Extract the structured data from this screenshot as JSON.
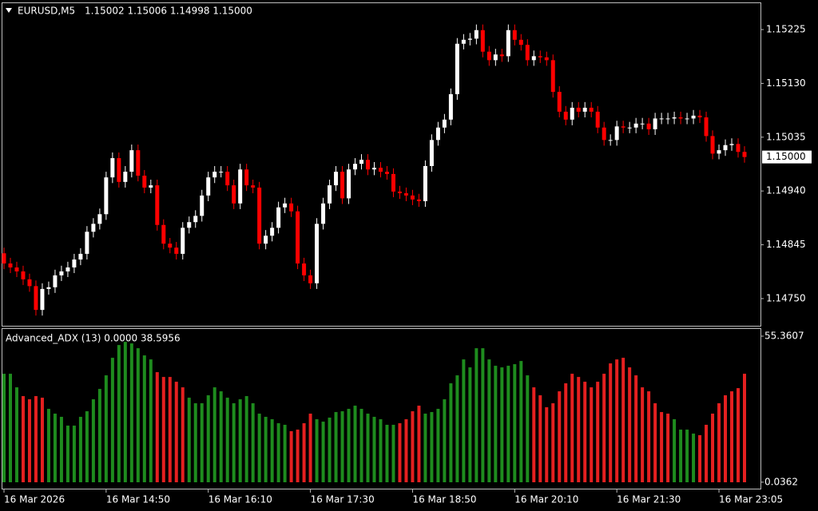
{
  "chart_data": [
    {
      "type": "candlestick",
      "title": "EURUSD,M5",
      "subtitle": "1.15002 1.15006 1.14998 1.15000",
      "last_price_label": "1.15000",
      "up_color": "#ffffff",
      "down_color": "#ff0000",
      "ylim": [
        1.14702,
        1.15273
      ],
      "yticks": [
        1.15225,
        {
          "value": 1.1513,
          "label": "1.15130"
        },
        1.15035,
        {
          "value": 1.1494,
          "label": "1.14940"
        },
        1.14845,
        {
          "value": 1.1475,
          "label": "1.14750"
        }
      ],
      "categories": [
        "16 Mar 2026",
        null,
        null,
        null,
        null,
        null,
        null,
        null,
        null,
        null,
        null,
        null,
        null,
        null,
        null,
        null,
        "16 Mar 14:50",
        null,
        null,
        null,
        null,
        null,
        null,
        null,
        null,
        null,
        null,
        null,
        null,
        null,
        null,
        null,
        "16 Mar 16:10",
        null,
        null,
        null,
        null,
        null,
        null,
        null,
        null,
        null,
        null,
        null,
        null,
        null,
        null,
        null,
        "16 Mar 17:30",
        null,
        null,
        null,
        null,
        null,
        null,
        null,
        null,
        null,
        null,
        null,
        null,
        null,
        null,
        null,
        "16 Mar 18:50",
        null,
        null,
        null,
        null,
        null,
        null,
        null,
        null,
        null,
        null,
        null,
        null,
        null,
        null,
        null,
        "16 Mar 20:10",
        null,
        null,
        null,
        null,
        null,
        null,
        null,
        null,
        null,
        null,
        null,
        null,
        null,
        null,
        null,
        "16 Mar 21:30",
        null,
        null,
        null,
        null,
        null,
        null,
        null,
        null,
        null,
        null,
        null,
        null,
        null,
        null,
        null,
        "16 Mar 23:05",
        null,
        null,
        null,
        null
      ],
      "open": [
        1.1483,
        1.14812,
        1.14805,
        1.14798,
        1.14784,
        1.14772,
        1.1473,
        1.14767,
        1.1477,
        1.14791,
        1.14798,
        1.14805,
        1.14819,
        1.14829,
        1.14868,
        1.14882,
        1.14899,
        1.14964,
        1.14998,
        1.14956,
        1.14974,
        1.15012,
        1.14967,
        1.14946,
        1.1495,
        1.1488,
        1.14847,
        1.1484,
        1.14829,
        1.14875,
        1.14885,
        1.14896,
        1.14932,
        1.14964,
        1.14974,
        1.14974,
        1.1495,
        1.14918,
        1.14978,
        1.1495,
        1.14946,
        1.14847,
        1.14861,
        1.14875,
        1.14911,
        1.14918,
        1.14904,
        1.14812,
        1.14791,
        1.14777,
        1.14882,
        1.14918,
        1.1495,
        1.14974,
        1.14927,
        1.14978,
        1.14988,
        1.14995,
        1.14978,
        1.14981,
        1.14974,
        1.1497,
        1.14939,
        1.14936,
        1.14932,
        1.14925,
        1.14922,
        1.14984,
        1.1503,
        1.15052,
        1.15066,
        1.15111,
        1.152,
        1.15207,
        1.15209,
        1.15224,
        1.15186,
        1.15171,
        1.15181,
        1.15178,
        1.15224,
        1.15207,
        1.15198,
        1.15171,
        1.15178,
        1.15176,
        1.15171,
        1.15115,
        1.1508,
        1.15066,
        1.15087,
        1.1508,
        1.15087,
        1.1508,
        1.15052,
        1.1503,
        1.1503,
        1.15054,
        1.15052,
        1.15052,
        1.15059,
        1.15059,
        1.15049,
        1.15068,
        1.15068,
        1.15068,
        1.1507,
        1.15068,
        1.15068,
        1.15073,
        1.1507,
        1.15037,
        1.15006,
        1.15012,
        1.15021,
        1.15023,
        1.15009
      ],
      "high": [
        1.1484,
        1.14822,
        1.14815,
        1.14808,
        1.14794,
        1.14782,
        1.14777,
        1.1478,
        1.14801,
        1.14808,
        1.14815,
        1.14829,
        1.14839,
        1.14878,
        1.14892,
        1.14909,
        1.14974,
        1.15008,
        1.15008,
        1.14984,
        1.15022,
        1.15022,
        1.14977,
        1.1496,
        1.1496,
        1.1489,
        1.14857,
        1.1485,
        1.14885,
        1.14895,
        1.14906,
        1.14942,
        1.14974,
        1.14984,
        1.14984,
        1.14984,
        1.1496,
        1.14988,
        1.14988,
        1.1496,
        1.14956,
        1.14871,
        1.14885,
        1.14921,
        1.14928,
        1.14928,
        1.14914,
        1.14822,
        1.14801,
        1.14892,
        1.14928,
        1.1496,
        1.14984,
        1.14984,
        1.14988,
        1.14998,
        1.15005,
        1.15005,
        1.14991,
        1.14991,
        1.14984,
        1.1498,
        1.14949,
        1.14946,
        1.14942,
        1.14935,
        1.14994,
        1.1504,
        1.15062,
        1.15076,
        1.15121,
        1.1521,
        1.15217,
        1.15219,
        1.15234,
        1.15234,
        1.15196,
        1.15191,
        1.15191,
        1.15234,
        1.15234,
        1.15217,
        1.15208,
        1.15188,
        1.15188,
        1.15186,
        1.15181,
        1.15125,
        1.1509,
        1.15097,
        1.15097,
        1.15097,
        1.15097,
        1.1509,
        1.15062,
        1.1504,
        1.15064,
        1.15064,
        1.15062,
        1.15069,
        1.15069,
        1.15069,
        1.15078,
        1.15078,
        1.15078,
        1.1508,
        1.1508,
        1.15078,
        1.15083,
        1.15083,
        1.1508,
        1.15047,
        1.15022,
        1.15031,
        1.15033,
        1.15033,
        1.15019
      ],
      "low": [
        1.14802,
        1.14795,
        1.14788,
        1.14774,
        1.14762,
        1.1472,
        1.1472,
        1.14757,
        1.1476,
        1.14781,
        1.14788,
        1.14795,
        1.14809,
        1.14819,
        1.14858,
        1.14872,
        1.14889,
        1.14954,
        1.14946,
        1.14946,
        1.14964,
        1.14957,
        1.14936,
        1.14936,
        1.1487,
        1.14837,
        1.1483,
        1.14819,
        1.14819,
        1.14865,
        1.14875,
        1.14886,
        1.14922,
        1.14954,
        1.14964,
        1.1494,
        1.14908,
        1.14908,
        1.1494,
        1.14936,
        1.14837,
        1.14837,
        1.14851,
        1.14865,
        1.14901,
        1.14894,
        1.14802,
        1.14781,
        1.14767,
        1.14767,
        1.14872,
        1.14908,
        1.1494,
        1.14917,
        1.14917,
        1.14968,
        1.14978,
        1.14968,
        1.14968,
        1.14964,
        1.1496,
        1.14929,
        1.14926,
        1.14922,
        1.14915,
        1.14912,
        1.14912,
        1.14974,
        1.1502,
        1.15042,
        1.15056,
        1.15101,
        1.1519,
        1.15197,
        1.15199,
        1.15176,
        1.15161,
        1.15161,
        1.15168,
        1.15168,
        1.15197,
        1.15188,
        1.15161,
        1.15161,
        1.15166,
        1.15161,
        1.15105,
        1.1507,
        1.15056,
        1.15056,
        1.1507,
        1.1507,
        1.1507,
        1.15042,
        1.1502,
        1.1502,
        1.1502,
        1.15042,
        1.15042,
        1.15042,
        1.15049,
        1.15039,
        1.15039,
        1.15058,
        1.15058,
        1.15058,
        1.15058,
        1.15058,
        1.15058,
        1.1506,
        1.15027,
        1.14996,
        1.14996,
        1.15002,
        1.15011,
        1.14999,
        1.1499
      ],
      "close": [
        1.14812,
        1.14805,
        1.14798,
        1.14784,
        1.14772,
        1.1473,
        1.14767,
        1.1477,
        1.14791,
        1.14798,
        1.14805,
        1.14819,
        1.14829,
        1.14868,
        1.14882,
        1.14899,
        1.14964,
        1.14998,
        1.14956,
        1.14974,
        1.15012,
        1.14967,
        1.14946,
        1.1495,
        1.1488,
        1.14847,
        1.1484,
        1.14829,
        1.14875,
        1.14885,
        1.14896,
        1.14932,
        1.14964,
        1.14974,
        1.14974,
        1.1495,
        1.14918,
        1.14978,
        1.1495,
        1.14946,
        1.14847,
        1.14861,
        1.14875,
        1.14911,
        1.14918,
        1.14904,
        1.14812,
        1.14791,
        1.14777,
        1.14882,
        1.14918,
        1.1495,
        1.14974,
        1.14927,
        1.14978,
        1.14988,
        1.14995,
        1.14978,
        1.14981,
        1.14974,
        1.1497,
        1.14939,
        1.14936,
        1.14932,
        1.14925,
        1.14922,
        1.14984,
        1.1503,
        1.15052,
        1.15066,
        1.15111,
        1.152,
        1.15207,
        1.15209,
        1.15224,
        1.15186,
        1.15171,
        1.15181,
        1.15178,
        1.15224,
        1.15207,
        1.15198,
        1.15171,
        1.15178,
        1.15176,
        1.15171,
        1.15115,
        1.1508,
        1.15066,
        1.15087,
        1.1508,
        1.15087,
        1.1508,
        1.15052,
        1.1503,
        1.1503,
        1.15054,
        1.15052,
        1.15052,
        1.15059,
        1.15059,
        1.15049,
        1.15068,
        1.15068,
        1.15068,
        1.1507,
        1.15068,
        1.15068,
        1.15073,
        1.1507,
        1.15037,
        1.15006,
        1.15012,
        1.15021,
        1.15023,
        1.15009,
        1.15
      ]
    },
    {
      "type": "bar",
      "title": "Advanced_ADX (13) 0.0000 38.5956",
      "ylim": [
        0,
        55.3607
      ],
      "yticks": [
        55.3607,
        0.0362
      ],
      "series": [
        {
          "color": "#1e8c1e",
          "values": [
            41.11,
            41.11,
            35.97,
            null,
            null,
            null,
            null,
            27.81,
            26.0,
            24.79,
            21.46,
            21.46,
            24.79,
            26.9,
            31.44,
            35.37,
            40.51,
            47.16,
            52.0,
            53.2,
            52.6,
            50.79,
            48.07,
            46.55,
            null,
            null,
            null,
            null,
            null,
            32.04,
            29.93,
            29.93,
            32.95,
            35.97,
            34.46,
            32.04,
            29.93,
            31.44,
            32.65,
            29.93,
            26.0,
            24.79,
            23.88,
            22.37,
            21.77,
            null,
            null,
            null,
            null,
            23.88,
            22.97,
            24.49,
            26.6,
            26.9,
            27.81,
            29.02,
            27.81,
            26.0,
            24.79,
            23.88,
            21.77,
            21.77,
            null,
            null,
            null,
            null,
            26.0,
            26.6,
            27.81,
            31.44,
            37.49,
            40.51,
            46.55,
            43.53,
            50.79,
            50.79,
            46.55,
            44.14,
            43.53,
            44.14,
            44.74,
            45.95,
            40.51,
            null,
            null,
            null,
            null,
            null,
            null,
            null,
            null,
            null,
            null,
            null,
            null,
            null,
            null,
            null,
            null,
            null,
            null,
            null,
            null,
            null,
            null,
            23.88,
            19.95,
            19.95,
            18.44,
            null,
            null,
            null,
            null,
            null,
            null,
            null,
            null
          ]
        },
        {
          "color": "#e52020",
          "values": [
            null,
            null,
            null,
            32.65,
            31.44,
            32.65,
            32.04,
            null,
            null,
            null,
            null,
            null,
            null,
            null,
            null,
            null,
            null,
            null,
            null,
            null,
            null,
            null,
            null,
            null,
            41.72,
            39.9,
            39.9,
            38.09,
            35.97,
            null,
            null,
            null,
            null,
            null,
            null,
            null,
            null,
            null,
            null,
            null,
            null,
            null,
            null,
            null,
            null,
            19.35,
            19.95,
            22.37,
            26.0,
            null,
            null,
            null,
            null,
            null,
            null,
            null,
            null,
            null,
            null,
            null,
            null,
            null,
            22.37,
            23.88,
            26.9,
            29.02,
            null,
            null,
            null,
            null,
            null,
            null,
            null,
            null,
            null,
            null,
            null,
            null,
            null,
            null,
            null,
            null,
            null,
            35.97,
            32.95,
            28.42,
            29.93,
            34.46,
            37.49,
            41.11,
            39.9,
            38.09,
            35.97,
            38.09,
            41.11,
            45.04,
            46.55,
            47.16,
            43.53,
            40.51,
            35.97,
            34.46,
            29.93,
            26.6,
            26.0,
            null,
            null,
            null,
            null,
            17.84,
            21.77,
            26.0,
            29.93,
            32.95,
            34.46,
            35.67,
            41.11
          ]
        }
      ]
    }
  ]
}
